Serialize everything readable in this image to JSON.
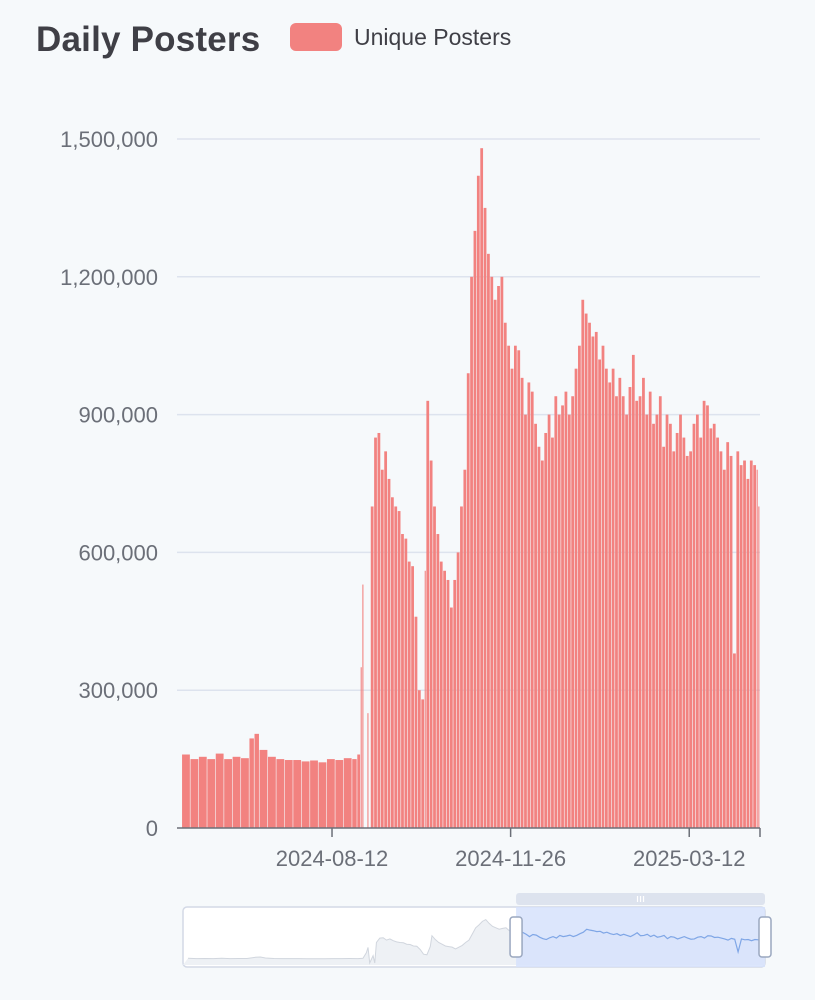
{
  "chart_data": {
    "type": "bar",
    "title": "Daily Posters",
    "legend": {
      "entries": [
        "Unique Posters"
      ],
      "placement": "top"
    },
    "series": [
      {
        "name": "Unique Posters",
        "color": "#f28280",
        "points": [
          [
            "2024-05-15",
            160000
          ],
          [
            "2024-05-20",
            150000
          ],
          [
            "2024-05-25",
            155000
          ],
          [
            "2024-05-30",
            150000
          ],
          [
            "2024-06-04",
            162000
          ],
          [
            "2024-06-09",
            150000
          ],
          [
            "2024-06-14",
            155000
          ],
          [
            "2024-06-19",
            152000
          ],
          [
            "2024-06-24",
            195000
          ],
          [
            "2024-06-27",
            205000
          ],
          [
            "2024-06-30",
            170000
          ],
          [
            "2024-07-05",
            155000
          ],
          [
            "2024-07-10",
            150000
          ],
          [
            "2024-07-15",
            148000
          ],
          [
            "2024-07-20",
            148000
          ],
          [
            "2024-07-25",
            145000
          ],
          [
            "2024-07-30",
            147000
          ],
          [
            "2024-08-04",
            143000
          ],
          [
            "2024-08-09",
            150000
          ],
          [
            "2024-08-14",
            148000
          ],
          [
            "2024-08-19",
            152000
          ],
          [
            "2024-08-24",
            150000
          ],
          [
            "2024-08-27",
            160000
          ],
          [
            "2024-08-29",
            350000
          ],
          [
            "2024-08-30",
            530000
          ],
          [
            "2024-08-31",
            0
          ],
          [
            "2024-09-02",
            250000
          ],
          [
            "2024-09-03",
            0
          ],
          [
            "2024-09-04",
            700000
          ],
          [
            "2024-09-06",
            850000
          ],
          [
            "2024-09-08",
            860000
          ],
          [
            "2024-09-10",
            780000
          ],
          [
            "2024-09-12",
            820000
          ],
          [
            "2024-09-14",
            760000
          ],
          [
            "2024-09-16",
            720000
          ],
          [
            "2024-09-18",
            700000
          ],
          [
            "2024-09-20",
            690000
          ],
          [
            "2024-09-22",
            640000
          ],
          [
            "2024-09-24",
            630000
          ],
          [
            "2024-09-26",
            580000
          ],
          [
            "2024-09-28",
            570000
          ],
          [
            "2024-09-30",
            460000
          ],
          [
            "2024-10-02",
            300000
          ],
          [
            "2024-10-04",
            280000
          ],
          [
            "2024-10-06",
            560000
          ],
          [
            "2024-10-07",
            930000
          ],
          [
            "2024-10-09",
            800000
          ],
          [
            "2024-10-11",
            700000
          ],
          [
            "2024-10-13",
            640000
          ],
          [
            "2024-10-15",
            580000
          ],
          [
            "2024-10-17",
            560000
          ],
          [
            "2024-10-19",
            540000
          ],
          [
            "2024-10-21",
            480000
          ],
          [
            "2024-10-23",
            540000
          ],
          [
            "2024-10-25",
            600000
          ],
          [
            "2024-10-27",
            700000
          ],
          [
            "2024-10-29",
            780000
          ],
          [
            "2024-10-31",
            990000
          ],
          [
            "2024-11-02",
            1200000
          ],
          [
            "2024-11-04",
            1300000
          ],
          [
            "2024-11-06",
            1420000
          ],
          [
            "2024-11-08",
            1480000
          ],
          [
            "2024-11-10",
            1350000
          ],
          [
            "2024-11-12",
            1250000
          ],
          [
            "2024-11-14",
            1200000
          ],
          [
            "2024-11-16",
            1150000
          ],
          [
            "2024-11-18",
            1180000
          ],
          [
            "2024-11-20",
            1200000
          ],
          [
            "2024-11-22",
            1100000
          ],
          [
            "2024-11-24",
            1050000
          ],
          [
            "2024-11-26",
            1000000
          ],
          [
            "2024-11-28",
            1050000
          ],
          [
            "2024-11-30",
            1040000
          ],
          [
            "2024-12-02",
            980000
          ],
          [
            "2024-12-04",
            900000
          ],
          [
            "2024-12-06",
            970000
          ],
          [
            "2024-12-08",
            950000
          ],
          [
            "2024-12-10",
            880000
          ],
          [
            "2024-12-12",
            830000
          ],
          [
            "2024-12-14",
            800000
          ],
          [
            "2024-12-16",
            860000
          ],
          [
            "2024-12-18",
            900000
          ],
          [
            "2024-12-20",
            850000
          ],
          [
            "2024-12-22",
            940000
          ],
          [
            "2024-12-24",
            900000
          ],
          [
            "2024-12-26",
            920000
          ],
          [
            "2024-12-28",
            950000
          ],
          [
            "2024-12-30",
            900000
          ],
          [
            "2025-01-01",
            940000
          ],
          [
            "2025-01-03",
            1000000
          ],
          [
            "2025-01-05",
            1050000
          ],
          [
            "2025-01-07",
            1150000
          ],
          [
            "2025-01-09",
            1120000
          ],
          [
            "2025-01-11",
            1100000
          ],
          [
            "2025-01-13",
            1070000
          ],
          [
            "2025-01-15",
            1080000
          ],
          [
            "2025-01-17",
            1020000
          ],
          [
            "2025-01-19",
            1050000
          ],
          [
            "2025-01-21",
            1000000
          ],
          [
            "2025-01-23",
            970000
          ],
          [
            "2025-01-25",
            1000000
          ],
          [
            "2025-01-27",
            940000
          ],
          [
            "2025-01-29",
            980000
          ],
          [
            "2025-01-31",
            940000
          ],
          [
            "2025-02-02",
            900000
          ],
          [
            "2025-02-04",
            960000
          ],
          [
            "2025-02-06",
            1030000
          ],
          [
            "2025-02-08",
            930000
          ],
          [
            "2025-02-10",
            940000
          ],
          [
            "2025-02-12",
            980000
          ],
          [
            "2025-02-14",
            900000
          ],
          [
            "2025-02-16",
            950000
          ],
          [
            "2025-02-18",
            880000
          ],
          [
            "2025-02-20",
            900000
          ],
          [
            "2025-02-22",
            940000
          ],
          [
            "2025-02-24",
            830000
          ],
          [
            "2025-02-26",
            900000
          ],
          [
            "2025-02-28",
            880000
          ],
          [
            "2025-03-02",
            820000
          ],
          [
            "2025-03-04",
            860000
          ],
          [
            "2025-03-06",
            900000
          ],
          [
            "2025-03-08",
            850000
          ],
          [
            "2025-03-10",
            810000
          ],
          [
            "2025-03-12",
            820000
          ],
          [
            "2025-03-14",
            880000
          ],
          [
            "2025-03-16",
            900000
          ],
          [
            "2025-03-18",
            850000
          ],
          [
            "2025-03-20",
            930000
          ],
          [
            "2025-03-22",
            920000
          ],
          [
            "2025-03-24",
            870000
          ],
          [
            "2025-03-26",
            880000
          ],
          [
            "2025-03-28",
            850000
          ],
          [
            "2025-03-30",
            820000
          ],
          [
            "2025-04-01",
            780000
          ],
          [
            "2025-04-03",
            840000
          ],
          [
            "2025-04-05",
            810000
          ],
          [
            "2025-04-07",
            380000
          ],
          [
            "2025-04-09",
            820000
          ],
          [
            "2025-04-11",
            790000
          ],
          [
            "2025-04-13",
            800000
          ],
          [
            "2025-04-15",
            760000
          ],
          [
            "2025-04-17",
            800000
          ],
          [
            "2025-04-19",
            790000
          ],
          [
            "2025-04-21",
            780000
          ],
          [
            "2025-04-22",
            700000
          ]
        ]
      }
    ],
    "x_type": "time",
    "x_range": [
      "2024-05-12",
      "2025-04-23"
    ],
    "x_ticks": [
      "2024-08-12",
      "2024-11-26",
      "2025-03-12"
    ],
    "ylim": [
      0,
      1500000
    ],
    "y_ticks": [
      0,
      300000,
      600000,
      900000,
      1200000,
      1500000
    ],
    "y_tick_labels": [
      "0",
      "300,000",
      "600,000",
      "900,000",
      "1,200,000",
      "1,500,000"
    ],
    "grid": "horizontal",
    "xlabel": "",
    "ylabel": "",
    "zoom_slider": {
      "visible": true,
      "selected_range": [
        "2024-11-26",
        "2025-04-23"
      ]
    }
  }
}
